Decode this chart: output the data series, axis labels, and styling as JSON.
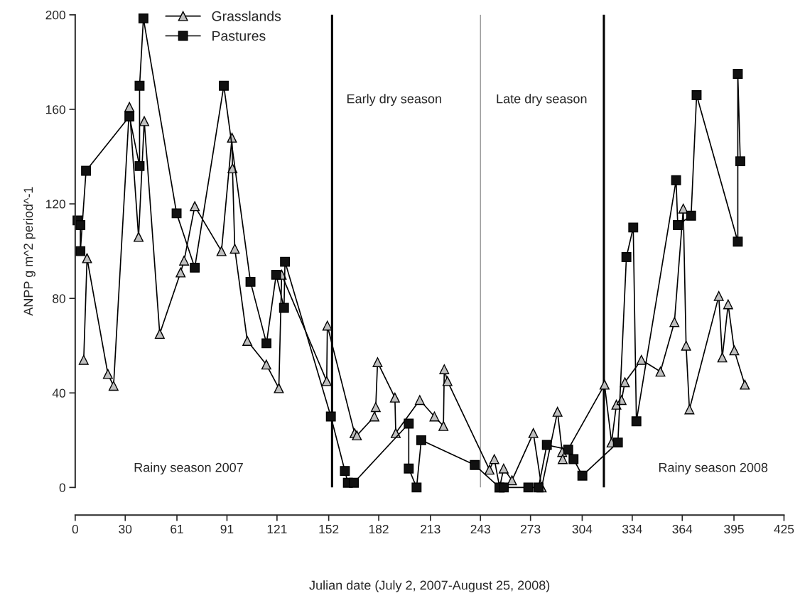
{
  "chart_data": {
    "type": "line",
    "xlabel": "Julian date (July 2, 2007-August 25, 2008)",
    "ylabel": "ANPP g m^2 period^-1",
    "xlim": [
      0,
      425
    ],
    "xticks": [
      0,
      30,
      61,
      91,
      121,
      152,
      182,
      213,
      243,
      273,
      304,
      334,
      364,
      395,
      425
    ],
    "ylim": [
      0,
      200
    ],
    "yticks": [
      0,
      40,
      80,
      120,
      160,
      200
    ],
    "grid": false,
    "legend": "top left",
    "line_style": "solid",
    "series": [
      {
        "name": "Grasslands",
        "color": "#bfbfbf",
        "marker": "triangle",
        "x": [
          5.1,
          7.1,
          19.6,
          23,
          32.5,
          38,
          41.4,
          50.7,
          63.2,
          65.3,
          71.7,
          87.7,
          94,
          94.3,
          95.7,
          103.2,
          114.6,
          122.1,
          123.8,
          150.8,
          151.2,
          167.5,
          168.9,
          179.4,
          180.2,
          181.3,
          191.7,
          192.2,
          206.6,
          215.4,
          220.8,
          221.3,
          223.2,
          248.4,
          251.3,
          254.5,
          256.9,
          261.9,
          274.7,
          279.7,
          289.2,
          292,
          292.3,
          317.4,
          321.6,
          324.5,
          327.6,
          329.6,
          339.5,
          350.9,
          359.3,
          364.6,
          366.3,
          368.3,
          385.9,
          388,
          391.5,
          395.2,
          401.5
        ],
        "values": [
          54,
          97,
          48,
          43,
          161,
          106,
          155,
          65,
          91,
          96,
          119,
          100,
          148,
          135,
          101,
          62,
          52,
          42,
          90,
          45,
          68.5,
          23,
          22,
          30,
          34,
          53,
          38,
          23,
          37,
          30,
          26,
          50,
          45,
          7.5,
          12,
          0,
          8,
          3,
          23,
          0,
          32,
          15,
          12,
          43.5,
          19,
          35,
          37,
          44.5,
          54,
          49,
          70,
          118,
          60,
          33,
          81,
          55,
          77.5,
          58,
          43.5
        ]
      },
      {
        "name": "Pastures",
        "color": "#111111",
        "marker": "square",
        "x": [
          1.4,
          3.1,
          3.1,
          6.5,
          32.5,
          38.6,
          38.6,
          40.9,
          60.8,
          71.7,
          89.1,
          105.1,
          114.7,
          120.5,
          125.2,
          125.8,
          153.3,
          161.7,
          163.5,
          167.1,
          200,
          200,
          204.7,
          207.5,
          239.6,
          254.4,
          257,
          271.7,
          277.8,
          282.8,
          295.6,
          298.8,
          304.1,
          325.4,
          330.5,
          334.6,
          336.5,
          360.3,
          361.3,
          369.3,
          372.6,
          397.3,
          397.3,
          398.8
        ],
        "values": [
          113,
          111,
          100,
          134,
          157,
          136,
          170,
          198.5,
          116,
          93,
          170,
          87,
          61,
          90,
          76,
          95.5,
          30,
          7,
          2,
          2,
          27,
          8,
          0,
          20,
          9.5,
          0,
          0,
          0,
          0,
          18,
          16,
          12,
          5,
          19,
          97.5,
          110,
          28,
          130,
          111,
          115,
          166,
          104,
          175,
          138
        ]
      }
    ],
    "ref_lines": [
      {
        "axis": "x",
        "value": 154,
        "color": "#000000"
      },
      {
        "axis": "x",
        "value": 243,
        "color": "#999999"
      },
      {
        "axis": "x",
        "value": 317,
        "color": "#000000"
      }
    ],
    "annotations": [
      "Early dry season",
      "Late dry season",
      "Rainy season 2007",
      "Rainy season 2008"
    ]
  }
}
